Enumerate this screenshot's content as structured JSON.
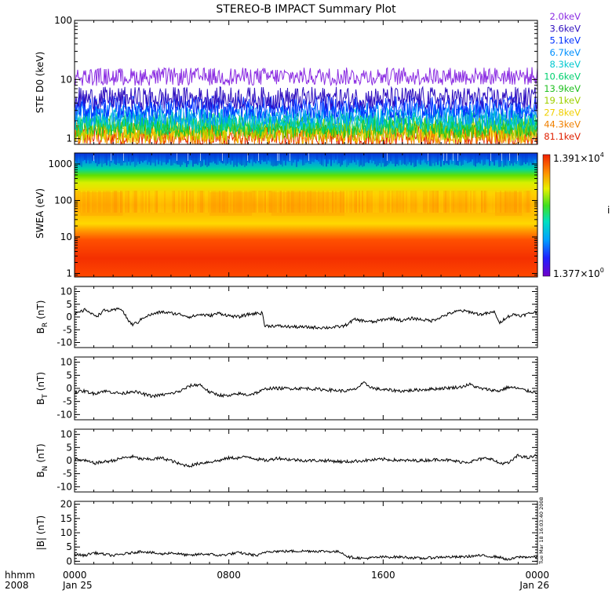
{
  "chart_data": {
    "title": "STEREO-B IMPACT Summary Plot",
    "x_axis": {
      "label_line1": "hhmm",
      "label_line2": "2008",
      "ticks": [
        {
          "hours": 0,
          "label": "0000",
          "date": "Jan 25"
        },
        {
          "hours": 8,
          "label": "0800",
          "date": ""
        },
        {
          "hours": 16,
          "label": "1600",
          "date": ""
        },
        {
          "hours": 24,
          "label": "0000",
          "date": "Jan 26"
        }
      ],
      "range_hours": [
        0,
        24
      ]
    },
    "panels": [
      {
        "id": "ste",
        "type": "line",
        "ylabel": "STE D0 (keV)",
        "yscale": "log",
        "ylim": [
          0.8,
          100
        ],
        "yticks": [
          1,
          10,
          100
        ],
        "ytick_labels": [
          "1",
          "10",
          "100"
        ],
        "energy_channels": [
          {
            "label": "2.0keV",
            "color": "#8a2be2",
            "typical_value": 13
          },
          {
            "label": "3.6keV",
            "color": "#3010c0",
            "typical_value": 4.8
          },
          {
            "label": "5.1keV",
            "color": "#0030ff",
            "typical_value": 3.4
          },
          {
            "label": "6.7keV",
            "color": "#0090ff",
            "typical_value": 2.6
          },
          {
            "label": "8.3keV",
            "color": "#00c8d0",
            "typical_value": 2.1
          },
          {
            "label": "10.6keV",
            "color": "#00d070",
            "typical_value": 1.8
          },
          {
            "label": "13.9keV",
            "color": "#20c020",
            "typical_value": 1.6
          },
          {
            "label": "19.1keV",
            "color": "#a0d000",
            "typical_value": 1.45
          },
          {
            "label": "27.8keV",
            "color": "#f0d000",
            "typical_value": 1.3
          },
          {
            "label": "44.3keV",
            "color": "#f08000",
            "typical_value": 1.2
          },
          {
            "label": "81.1keV",
            "color": "#e02000",
            "typical_value": 1.1
          }
        ]
      },
      {
        "id": "swea",
        "type": "heatmap",
        "ylabel": "SWEA (eV)",
        "yscale": "log",
        "ylim": [
          0.8,
          2000
        ],
        "yticks": [
          1,
          10,
          100,
          1000
        ],
        "ytick_labels": [
          "1",
          "10",
          "100",
          "1000"
        ],
        "colorbar": {
          "max_mantissa": "1.391",
          "max_exponent": "4",
          "min_mantissa": "1.377",
          "min_exponent": "0",
          "side_label": "i"
        }
      },
      {
        "id": "br",
        "type": "line",
        "ylabel_main": "B",
        "ylabel_sub": "R",
        "ylabel_unit": "(nT)",
        "ylim": [
          -12,
          12
        ],
        "yticks": [
          -10,
          -5,
          0,
          5,
          10
        ],
        "ytick_labels": [
          "-10",
          "-5",
          "0",
          "5",
          "10"
        ],
        "hours": [
          0,
          0.3,
          0.6,
          0.9,
          1.2,
          1.5,
          2.0,
          2.4,
          2.8,
          3.0,
          3.3,
          3.6,
          4.0,
          4.5,
          5.0,
          5.5,
          6.0,
          6.5,
          7.0,
          7.5,
          8.0,
          8.5,
          9.0,
          9.5,
          9.75,
          9.85,
          10.5,
          11.0,
          12.0,
          13.0,
          13.5,
          14.0,
          14.5,
          15.0,
          15.5,
          16.0,
          16.5,
          17.0,
          17.5,
          18.0,
          18.5,
          19.0,
          19.5,
          20.0,
          20.5,
          21.0,
          21.5,
          21.8,
          22.0,
          22.4,
          22.8,
          23.2,
          23.6,
          24.0
        ],
        "values": [
          1,
          2,
          3,
          1,
          0.5,
          2.5,
          2.5,
          3.5,
          -1.5,
          -3,
          -2,
          0,
          1,
          2,
          1.5,
          1,
          0,
          1,
          0.5,
          1.5,
          0.5,
          0,
          1,
          1.5,
          1.5,
          -3.5,
          -3.5,
          -3.8,
          -4,
          -4.2,
          -4,
          -3.5,
          -1,
          -1.5,
          -2,
          -1,
          -0.5,
          -1.5,
          -0.5,
          -1,
          -1.5,
          0,
          1.5,
          2.5,
          2,
          1,
          1.5,
          2,
          -2.5,
          0,
          1,
          0.5,
          1.5,
          2
        ]
      },
      {
        "id": "bt",
        "type": "line",
        "ylabel_main": "B",
        "ylabel_sub": "T",
        "ylabel_unit": "(nT)",
        "ylim": [
          -12,
          12
        ],
        "yticks": [
          -10,
          -5,
          0,
          5,
          10
        ],
        "ytick_labels": [
          "-10",
          "-5",
          "0",
          "5",
          "10"
        ],
        "hours": [
          0,
          0.5,
          1.0,
          1.5,
          2.0,
          2.5,
          3.0,
          3.5,
          4.0,
          4.5,
          5.0,
          5.5,
          6.0,
          6.5,
          7.0,
          7.5,
          8.0,
          8.5,
          9.0,
          9.5,
          10.0,
          11.0,
          12.0,
          13.0,
          14.0,
          14.5,
          15.0,
          15.5,
          16.0,
          17.0,
          18.0,
          19.0,
          20.0,
          20.5,
          21.0,
          21.5,
          22.0,
          22.5,
          23.0,
          23.5,
          24.0
        ],
        "values": [
          -1.5,
          -1,
          -2,
          -1,
          -1.5,
          -2,
          -1,
          -2,
          -3,
          -2.5,
          -2,
          -1,
          1,
          1.5,
          -1.5,
          -2.5,
          -3,
          -2,
          -2.5,
          -1.5,
          0,
          0,
          0,
          -0.5,
          -1,
          -0.5,
          2,
          0,
          -0.5,
          -1,
          -0.5,
          0,
          0.5,
          1.5,
          0,
          -0.5,
          -1,
          0.5,
          0,
          -1,
          -1.5
        ]
      },
      {
        "id": "bn",
        "type": "line",
        "ylabel_main": "B",
        "ylabel_sub": "N",
        "ylabel_unit": "(nT)",
        "ylim": [
          -12,
          12
        ],
        "yticks": [
          -10,
          -5,
          0,
          5,
          10
        ],
        "ytick_labels": [
          "-10",
          "-5",
          "0",
          "5",
          "10"
        ],
        "hours": [
          0,
          0.5,
          1.0,
          1.5,
          2.0,
          2.5,
          3.0,
          3.5,
          4.0,
          4.5,
          5.0,
          5.5,
          6.0,
          6.5,
          7.0,
          7.5,
          8.0,
          8.5,
          9.0,
          9.5,
          10.0,
          10.5,
          11.0,
          12.0,
          13.0,
          14.0,
          15.0,
          16.0,
          17.0,
          18.0,
          19.0,
          20.0,
          20.5,
          21.0,
          21.5,
          22.0,
          22.5,
          23.0,
          23.5,
          24.0
        ],
        "values": [
          0.5,
          0,
          -1,
          -0.5,
          0,
          1,
          1.5,
          0.5,
          0.5,
          1,
          0,
          -1.5,
          -2,
          -1,
          -0.5,
          0,
          1,
          1,
          1.5,
          0.5,
          0,
          1,
          0.5,
          0,
          0,
          -0.5,
          0,
          0.5,
          0,
          0,
          0.5,
          -0.5,
          -0.5,
          0.5,
          1,
          -1,
          -1,
          2,
          1,
          2
        ]
      },
      {
        "id": "bmag",
        "type": "line",
        "ylabel": "|B| (nT)",
        "ylim": [
          -1,
          21
        ],
        "yticks": [
          0,
          5,
          10,
          15,
          20
        ],
        "ytick_labels": [
          "0",
          "5",
          "10",
          "15",
          "20"
        ],
        "hours": [
          0,
          0.5,
          1.0,
          1.5,
          2.0,
          2.5,
          3.0,
          3.5,
          4.0,
          4.5,
          5.0,
          5.5,
          6.0,
          6.5,
          7.0,
          7.5,
          8.0,
          8.5,
          9.0,
          9.5,
          10.0,
          11.0,
          12.0,
          13.0,
          13.8,
          14.2,
          15.0,
          16.0,
          17.0,
          18.0,
          19.0,
          20.0,
          21.0,
          22.0,
          22.5,
          23.0,
          23.5,
          24.0
        ],
        "values": [
          2.5,
          2,
          3,
          2.5,
          2,
          2.5,
          3,
          3.5,
          3,
          2.5,
          3,
          2.5,
          2,
          2.5,
          2.5,
          2,
          2.5,
          3,
          2.5,
          2,
          3.5,
          3.5,
          3.6,
          3.5,
          3.3,
          1.5,
          1,
          1.5,
          1.5,
          1,
          1.5,
          1.5,
          2,
          1.5,
          0.5,
          1.5,
          1.5,
          1.5
        ]
      }
    ],
    "timestamp_stamp": "Tue Mar 18 16:03:40 2008"
  }
}
